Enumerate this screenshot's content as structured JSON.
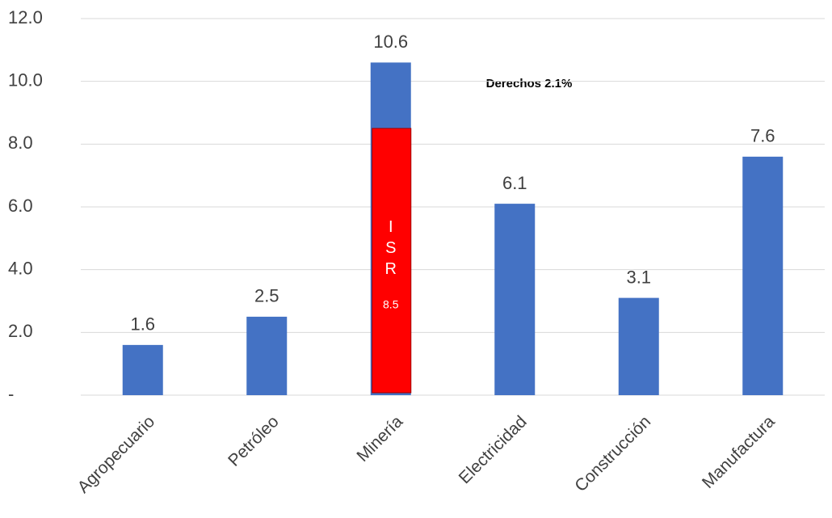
{
  "chart_data": {
    "type": "bar",
    "categories": [
      "Agropecuario",
      "Petróleo",
      "Minería",
      "Electricidad",
      "Construcción",
      "Manufactura"
    ],
    "values": [
      1.6,
      2.5,
      10.6,
      6.1,
      3.1,
      7.6
    ],
    "color": "#4472c4",
    "ylim": [
      0,
      12
    ],
    "yticks": [
      {
        "value": 0,
        "label": "-"
      },
      {
        "value": 2,
        "label": "2.0"
      },
      {
        "value": 4,
        "label": "4.0"
      },
      {
        "value": 6,
        "label": "6.0"
      },
      {
        "value": 8,
        "label": "8.0"
      },
      {
        "value": 10,
        "label": "10.0"
      },
      {
        "value": 12,
        "label": "12.0"
      }
    ],
    "grid": true,
    "overlay": {
      "category_index": 2,
      "label": "ISR",
      "value": 8.5,
      "color": "#ff0000"
    },
    "annotation": "Derechos 2.1%"
  }
}
